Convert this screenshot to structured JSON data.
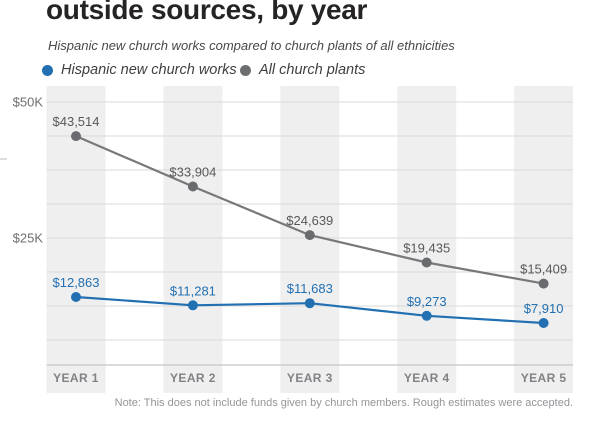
{
  "title": "outside sources, by year",
  "subtitle": "Hispanic new church works compared to church plants of all ethnicities",
  "legend": {
    "items": [
      {
        "label": "Hispanic new church works",
        "color": "#2270b2"
      },
      {
        "label": "All church plants",
        "color": "#6d6e70"
      }
    ]
  },
  "note": "Note: This does not include funds given by church members. Rough estimates were accepted.",
  "styles": {
    "background": "#ffffff",
    "stripe_color": "#efefef",
    "grid_color": "#d9dadb",
    "axis_color": "#c4c5c7",
    "edge_tick_color": "#cfd0d1",
    "title_color": "#262324",
    "subtitle_color": "#47484a",
    "note_color": "#939598",
    "y_tick_color": "#6d6e70",
    "category_color": "#808285"
  },
  "chart_data": {
    "type": "line",
    "title": "outside sources, by year",
    "subtitle": "Hispanic new church works compared to church plants of all ethnicities",
    "categories": [
      "YEAR 1",
      "YEAR 2",
      "YEAR 3",
      "YEAR 4",
      "YEAR 5"
    ],
    "series": [
      {
        "name": "All church plants",
        "color": "#77787b",
        "point_color": "#6a6b6e",
        "label_color": "#58595b",
        "values": [
          43514,
          33904,
          24639,
          19435,
          15409
        ],
        "labels": [
          "$43,514",
          "$33,904",
          "$24,639",
          "$19,435",
          "$15,409"
        ]
      },
      {
        "name": "Hispanic new church works",
        "color": "#2270b2",
        "point_color": "#2270b2",
        "label_color": "#2270b2",
        "values": [
          12863,
          11281,
          11683,
          9273,
          7910
        ],
        "labels": [
          "$12,863",
          "$11,281",
          "$11,683",
          "$9,273",
          "$7,910"
        ]
      }
    ],
    "y_axis": {
      "tick_labels": [
        "$50K",
        "$25K"
      ],
      "tick_values": [
        50000,
        25000
      ]
    },
    "ylim": [
      0,
      52000
    ],
    "grid": true,
    "legend_position": "top",
    "note": "Note: This does not include funds given by church members. Rough estimates were accepted."
  }
}
